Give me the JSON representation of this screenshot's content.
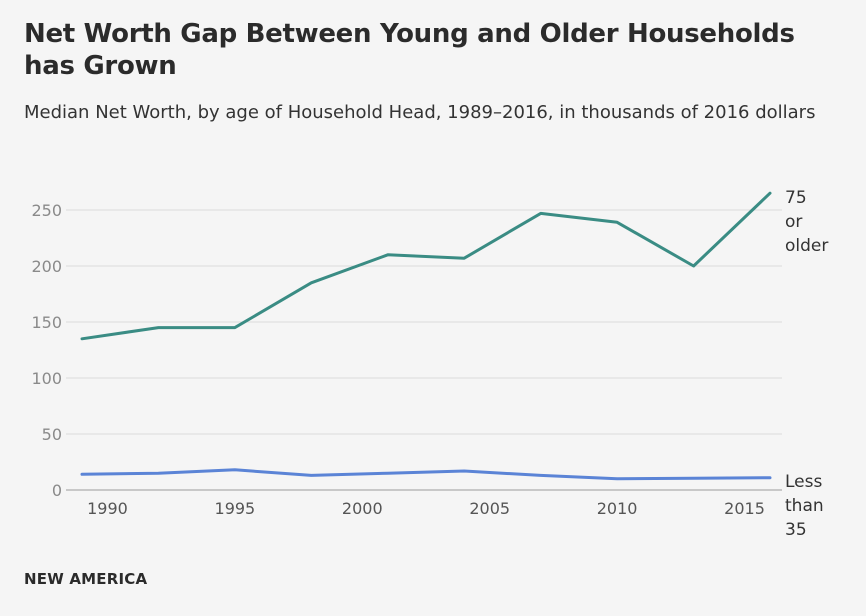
{
  "title": "Net Worth Gap Between Young and Older Households has Grown",
  "subtitle": "Median Net Worth, by age of Household Head, 1989–2016, in thousands of 2016 dollars",
  "footer": "NEW AMERICA",
  "colors": {
    "background": "#f5f5f5",
    "older": "#3a8c84",
    "younger": "#5b84d6",
    "grid": "#dcdcdc",
    "tick_text": "#8a8a8a"
  },
  "chart_data": {
    "type": "line",
    "x": [
      1989,
      1992,
      1995,
      1998,
      2001,
      2004,
      2007,
      2010,
      2013,
      2016
    ],
    "series": [
      {
        "name": "75 or older",
        "label_lines": [
          "75",
          "or",
          "older"
        ],
        "color": "#3a8c84",
        "values": [
          135,
          145,
          145,
          185,
          210,
          207,
          247,
          239,
          200,
          265
        ]
      },
      {
        "name": "Less than 35",
        "label_lines": [
          "Less",
          "than",
          "35"
        ],
        "color": "#5b84d6",
        "values": [
          14,
          15,
          18,
          13,
          15,
          17,
          13,
          10,
          10.5,
          11
        ]
      }
    ],
    "x_ticks": [
      1990,
      1995,
      2000,
      2005,
      2010,
      2015
    ],
    "y_ticks": [
      0,
      50,
      100,
      150,
      200,
      250
    ],
    "xlim": [
      1989,
      2016
    ],
    "ylim": [
      0,
      250
    ],
    "grid": true,
    "legend": "direct labels at line ends"
  }
}
